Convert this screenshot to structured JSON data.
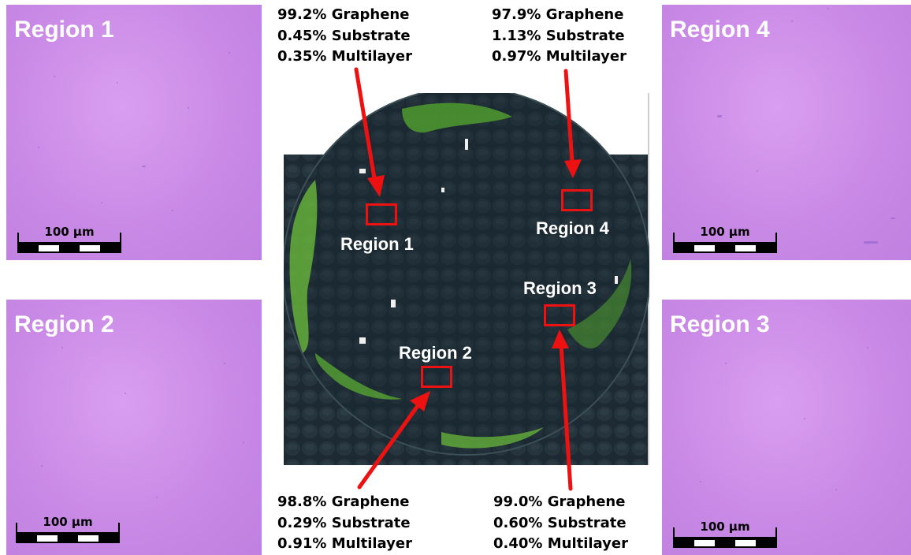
{
  "panels": [
    {
      "label": "Region 1",
      "scale": "100 µm"
    },
    {
      "label": "Region 2",
      "scale": "100 µm"
    },
    {
      "label": "Region 4",
      "scale": "100 µm"
    },
    {
      "label": "Region 3",
      "scale": "100 µm"
    }
  ],
  "center_labels": {
    "region1": "Region 1",
    "region2": "Region 2",
    "region3": "Region 3",
    "region4": "Region 4"
  },
  "stats": {
    "region1": [
      "99.2% Graphene",
      "0.45% Substrate",
      "0.35% Multilayer"
    ],
    "region4": [
      "97.9% Graphene",
      "1.13% Substrate",
      "0.97% Multilayer"
    ],
    "region2": [
      "98.8% Graphene",
      "0.29% Substrate",
      "0.91% Multilayer"
    ],
    "region3": [
      "99.0% Graphene",
      "0.60% Substrate",
      "0.40% Multilayer"
    ]
  },
  "colors": {
    "annotation": "#ee1111",
    "film": "#3fae2e",
    "wafer": "#1c2a33",
    "micrograph": "#cc8fe8"
  }
}
